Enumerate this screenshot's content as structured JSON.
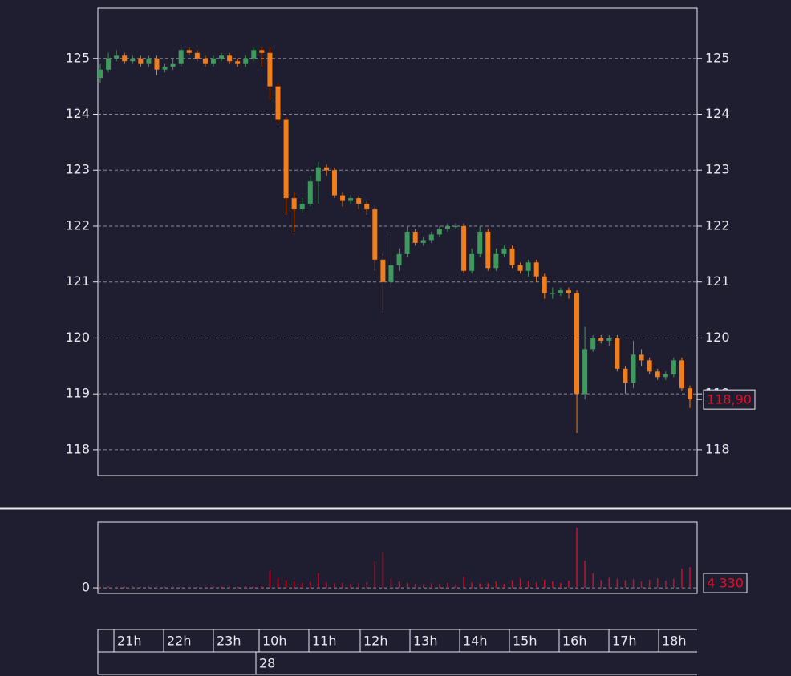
{
  "chart_data": {
    "type": "candlestick",
    "open": [
      124.65,
      124.8,
      125.0,
      125.05,
      124.95,
      125.0,
      124.9,
      125.0,
      124.8,
      124.85,
      124.9,
      125.15,
      125.1,
      125.0,
      124.9,
      125.0,
      125.05,
      124.95,
      124.9,
      125.0,
      125.15,
      125.1,
      124.5,
      123.9,
      122.5,
      122.3,
      122.4,
      122.8,
      123.05,
      123.0,
      122.55,
      122.45,
      122.5,
      122.4,
      122.3,
      121.4,
      121.0,
      121.3,
      121.5,
      121.9,
      121.7,
      121.75,
      121.85,
      121.95,
      122.0,
      122.0,
      121.2,
      121.5,
      121.9,
      121.25,
      121.5,
      121.6,
      121.3,
      121.2,
      121.35,
      121.1,
      120.8,
      120.8,
      120.85,
      120.8,
      119.0,
      119.8,
      120.0,
      119.95,
      120.0,
      119.45,
      119.2,
      119.7,
      119.6,
      119.4,
      119.3,
      119.35,
      119.6,
      119.1
    ],
    "high": [
      124.9,
      125.1,
      125.15,
      125.1,
      125.05,
      125.05,
      125.05,
      125.05,
      124.9,
      125.0,
      125.2,
      125.2,
      125.15,
      125.05,
      125.05,
      125.1,
      125.1,
      125.0,
      125.05,
      125.2,
      125.2,
      125.2,
      124.55,
      123.95,
      122.6,
      122.5,
      122.9,
      123.15,
      123.1,
      123.05,
      122.6,
      122.55,
      122.55,
      122.45,
      122.35,
      121.5,
      121.9,
      121.6,
      122.0,
      121.95,
      121.8,
      121.9,
      122.0,
      122.05,
      122.05,
      122.05,
      121.6,
      122.0,
      121.95,
      121.6,
      121.65,
      121.65,
      121.35,
      121.4,
      121.4,
      121.15,
      120.9,
      120.9,
      120.9,
      120.85,
      120.2,
      120.05,
      120.05,
      120.05,
      120.05,
      119.5,
      119.95,
      119.8,
      119.65,
      119.45,
      119.4,
      119.65,
      119.65,
      119.15
    ],
    "low": [
      124.55,
      124.75,
      124.95,
      124.9,
      124.9,
      124.85,
      124.85,
      124.7,
      124.75,
      124.8,
      124.85,
      125.05,
      124.95,
      124.85,
      124.85,
      124.95,
      124.9,
      124.85,
      124.85,
      124.95,
      124.85,
      124.25,
      123.85,
      122.2,
      121.9,
      122.25,
      122.35,
      122.4,
      122.9,
      122.5,
      122.35,
      122.4,
      122.3,
      122.2,
      121.2,
      120.45,
      120.9,
      121.2,
      121.45,
      121.65,
      121.65,
      121.7,
      121.8,
      121.9,
      121.95,
      121.15,
      121.15,
      121.45,
      121.2,
      121.2,
      121.45,
      121.25,
      121.15,
      121.1,
      121.0,
      120.7,
      120.7,
      120.75,
      120.7,
      118.3,
      118.9,
      119.75,
      119.9,
      119.85,
      119.4,
      119.0,
      119.1,
      119.5,
      119.35,
      119.25,
      119.25,
      119.3,
      119.05,
      118.75
    ],
    "close": [
      124.8,
      125.0,
      125.05,
      124.95,
      125.0,
      124.9,
      125.0,
      124.8,
      124.85,
      124.9,
      125.15,
      125.1,
      125.0,
      124.9,
      125.0,
      125.05,
      124.95,
      124.9,
      125.0,
      125.15,
      125.1,
      124.5,
      123.9,
      122.5,
      122.3,
      122.4,
      122.8,
      123.05,
      123.0,
      122.55,
      122.45,
      122.5,
      122.4,
      122.3,
      121.4,
      121.0,
      121.3,
      121.5,
      121.9,
      121.7,
      121.75,
      121.85,
      121.95,
      122.0,
      122.0,
      121.2,
      121.5,
      121.9,
      121.25,
      121.5,
      121.6,
      121.3,
      121.2,
      121.35,
      121.1,
      120.8,
      120.8,
      120.85,
      120.8,
      119.0,
      119.8,
      120.0,
      119.95,
      120.0,
      119.45,
      119.2,
      119.7,
      119.6,
      119.4,
      119.3,
      119.35,
      119.6,
      119.1,
      118.9
    ],
    "volume": [
      100,
      150,
      120,
      100,
      180,
      90,
      140,
      110,
      100,
      130,
      160,
      120,
      90,
      100,
      140,
      120,
      110,
      100,
      150,
      130,
      200,
      3600,
      2000,
      1500,
      1200,
      900,
      1100,
      3000,
      1000,
      800,
      900,
      700,
      800,
      1000,
      5500,
      7600,
      1800,
      1200,
      900,
      700,
      600,
      800,
      700,
      900,
      600,
      2200,
      1000,
      800,
      900,
      1200,
      700,
      1500,
      1800,
      1300,
      1000,
      1600,
      1200,
      900,
      1400,
      12800,
      5700,
      3000,
      1500,
      2000,
      1800,
      1500,
      1700,
      1200,
      1600,
      1900,
      1400,
      1800,
      4000,
      4330
    ],
    "up_color": "#3d9a5c",
    "down_color": "#f27d1b",
    "volume_color": "#c8102e",
    "ylim": [
      117.54,
      125.9
    ],
    "yticks": [
      118,
      119,
      120,
      121,
      122,
      123,
      124,
      125
    ],
    "grid": true,
    "volume_ylim": [
      -1200,
      14200
    ],
    "volume_yticks": [
      0
    ],
    "last_close_label": "118,90",
    "last_volume_label": "4 330",
    "time_labels": [
      "21h",
      "22h",
      "23h",
      "10h",
      "11h",
      "12h",
      "13h",
      "14h",
      "15h",
      "16h",
      "17h",
      "18h"
    ],
    "date_label": "28"
  }
}
